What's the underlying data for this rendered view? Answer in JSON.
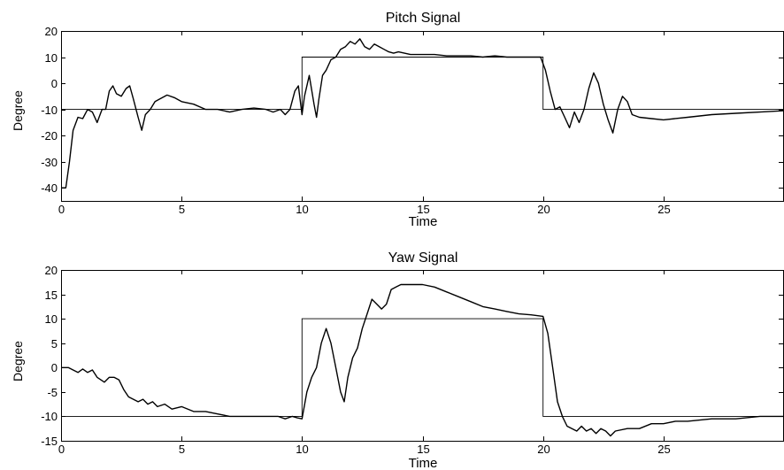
{
  "chart_data": [
    {
      "type": "line",
      "title": "Pitch Signal",
      "xlabel": "Time",
      "ylabel": "Degree",
      "xlim": [
        0,
        30
      ],
      "ylim": [
        -45,
        20
      ],
      "xticks": [
        0,
        5,
        10,
        15,
        20,
        25
      ],
      "yticks": [
        -40,
        -30,
        -20,
        -10,
        0,
        10,
        20
      ],
      "grid": false,
      "series": [
        {
          "x": [
            0,
            10,
            10,
            20,
            20,
            30
          ],
          "values": [
            -10,
            -10,
            10,
            10,
            -10,
            -10
          ]
        },
        {
          "x": [
            0,
            0.2,
            0.35,
            0.5,
            0.7,
            0.9,
            1.1,
            1.3,
            1.5,
            1.7,
            1.85,
            2.0,
            2.15,
            2.3,
            2.5,
            2.7,
            2.85,
            3.0,
            3.2,
            3.35,
            3.5,
            3.7,
            3.9,
            4.1,
            4.4,
            4.7,
            5.0,
            5.5,
            6.0,
            6.5,
            7.0,
            7.5,
            8.0,
            8.5,
            8.8,
            9.1,
            9.3,
            9.5,
            9.7,
            9.85,
            10.0,
            10.1,
            10.3,
            10.5,
            10.6,
            10.7,
            10.85,
            11.0,
            11.2,
            11.4,
            11.6,
            11.8,
            12.0,
            12.2,
            12.4,
            12.6,
            12.8,
            13.0,
            13.2,
            13.4,
            13.6,
            13.8,
            14.0,
            14.5,
            15.0,
            15.5,
            16.0,
            16.5,
            17.0,
            17.5,
            18.0,
            18.5,
            19.0,
            19.5,
            19.9,
            20.1,
            20.3,
            20.5,
            20.7,
            20.9,
            21.1,
            21.3,
            21.5,
            21.7,
            21.9,
            22.1,
            22.3,
            22.5,
            22.7,
            22.9,
            23.1,
            23.3,
            23.5,
            23.7,
            24.0,
            24.5,
            25.0,
            26.0,
            27.0,
            28.0,
            29.0,
            30.0
          ],
          "values": [
            -40,
            -40,
            -30,
            -18,
            -13,
            -13.5,
            -10,
            -11,
            -15,
            -10,
            -10,
            -3,
            -1,
            -4,
            -5,
            -2,
            -1,
            -6,
            -13,
            -18,
            -12,
            -10,
            -7,
            -6,
            -4.5,
            -5.5,
            -7,
            -8,
            -10,
            -10,
            -11,
            -10,
            -9.5,
            -10,
            -11,
            -10,
            -12,
            -10,
            -3,
            -1,
            -12,
            -5,
            3,
            -8,
            -13,
            -6,
            3,
            5,
            9,
            10,
            13,
            14,
            16,
            15,
            17,
            14,
            13,
            15,
            14,
            13,
            12,
            11.5,
            12,
            11,
            11,
            11,
            10.5,
            10.5,
            10.5,
            10,
            10.5,
            10,
            10,
            10,
            10,
            5,
            -3,
            -10,
            -9,
            -13,
            -17,
            -11,
            -15,
            -10,
            -2,
            4,
            0,
            -8,
            -14,
            -19,
            -10,
            -5,
            -7,
            -12,
            -13,
            -13.5,
            -14,
            -13,
            -12,
            -11.5,
            -11,
            -10.5
          ]
        }
      ]
    },
    {
      "type": "line",
      "title": "Yaw Signal",
      "xlabel": "Time",
      "ylabel": "Degree",
      "xlim": [
        0,
        30
      ],
      "ylim": [
        -15,
        20
      ],
      "xticks": [
        0,
        5,
        10,
        15,
        20,
        25
      ],
      "yticks": [
        -15,
        -10,
        -5,
        0,
        5,
        10,
        15,
        20
      ],
      "grid": false,
      "series": [
        {
          "x": [
            0,
            10,
            10,
            20,
            20,
            30
          ],
          "values": [
            -10,
            -10,
            10,
            10,
            -10,
            -10
          ]
        },
        {
          "x": [
            0,
            0.3,
            0.5,
            0.7,
            0.9,
            1.1,
            1.3,
            1.5,
            1.8,
            2.0,
            2.2,
            2.4,
            2.6,
            2.8,
            3.0,
            3.2,
            3.4,
            3.6,
            3.8,
            4.0,
            4.3,
            4.6,
            5.0,
            5.5,
            6.0,
            6.5,
            7.0,
            7.5,
            8.0,
            8.5,
            9.0,
            9.3,
            9.6,
            9.8,
            10.0,
            10.2,
            10.4,
            10.6,
            10.8,
            11.0,
            11.2,
            11.4,
            11.6,
            11.75,
            11.9,
            12.1,
            12.3,
            12.5,
            12.7,
            12.9,
            13.1,
            13.3,
            13.5,
            13.7,
            13.9,
            14.1,
            14.5,
            15.0,
            15.5,
            16.0,
            16.5,
            17.0,
            17.5,
            18.0,
            18.5,
            19.0,
            19.5,
            20.0,
            20.2,
            20.4,
            20.6,
            20.8,
            21.0,
            21.2,
            21.4,
            21.6,
            21.8,
            22.0,
            22.2,
            22.4,
            22.6,
            22.8,
            23.0,
            23.5,
            24.0,
            24.5,
            25.0,
            25.5,
            26.0,
            27.0,
            28.0,
            29.0,
            30.0
          ],
          "values": [
            0,
            0,
            -0.5,
            -1,
            -0.3,
            -1,
            -0.5,
            -2,
            -3,
            -2,
            -2,
            -2.5,
            -4.5,
            -6,
            -6.5,
            -7,
            -6.5,
            -7.5,
            -7,
            -8,
            -7.5,
            -8.5,
            -8,
            -9,
            -9,
            -9.5,
            -10,
            -10,
            -10,
            -10,
            -10,
            -10.5,
            -10,
            -10.3,
            -10.5,
            -5,
            -2,
            0,
            5,
            8,
            5,
            0,
            -5,
            -7,
            -2,
            2,
            4,
            8,
            11,
            14,
            13,
            12,
            13,
            16,
            16.5,
            17,
            17,
            17,
            16.5,
            15.5,
            14.5,
            13.5,
            12.5,
            12,
            11.5,
            11,
            10.8,
            10.5,
            7,
            0,
            -7,
            -10,
            -12,
            -12.5,
            -13,
            -12,
            -13,
            -12.5,
            -13.5,
            -12.5,
            -13,
            -14,
            -13,
            -12.5,
            -12.5,
            -11.5,
            -11.5,
            -11,
            -11,
            -10.5,
            -10.5,
            -10,
            -10
          ]
        }
      ]
    }
  ]
}
